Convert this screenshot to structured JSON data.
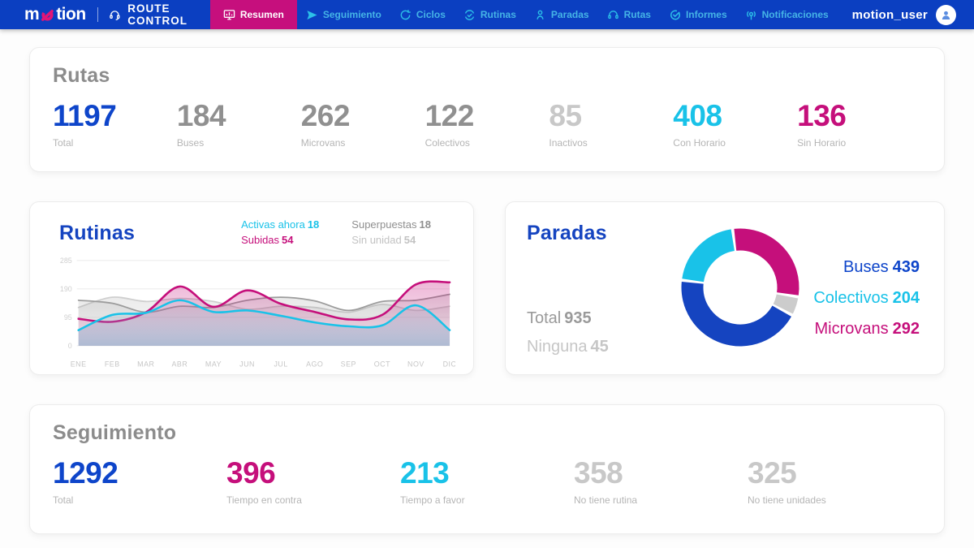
{
  "brand": {
    "logo_start": "m",
    "logo_end": "tion",
    "product": "ROUTE CONTROL",
    "user": "motion_user"
  },
  "colors": {
    "navbar_blue": "#0b3fc1",
    "active_pink": "#c60f7d",
    "nav_cyan": "#2cc0e8",
    "blue": "#0e45ca",
    "cyan": "#19c2e8",
    "magenta": "#c50f7b",
    "gray": "#909090",
    "light_gray": "#c8c8c8",
    "heading_blue": "#1544c0"
  },
  "nav": {
    "items": [
      {
        "label": "Resumen",
        "active": true
      },
      {
        "label": "Seguimiento",
        "active": false
      },
      {
        "label": "Ciclos",
        "active": false
      },
      {
        "label": "Rutinas",
        "active": false
      },
      {
        "label": "Paradas",
        "active": false
      },
      {
        "label": "Rutas",
        "active": false
      },
      {
        "label": "Informes",
        "active": false
      },
      {
        "label": "Notificaciones",
        "active": false
      }
    ]
  },
  "rutas": {
    "title": "Rutas",
    "stats": [
      {
        "value": "1197",
        "label": "Total",
        "color": "blue"
      },
      {
        "value": "184",
        "label": "Buses",
        "color": "gray"
      },
      {
        "value": "262",
        "label": "Microvans",
        "color": "gray"
      },
      {
        "value": "122",
        "label": "Colectivos",
        "color": "gray"
      },
      {
        "value": "85",
        "label": "Inactivos",
        "color": "lightgray"
      },
      {
        "value": "408",
        "label": "Con Horario",
        "color": "cyan"
      },
      {
        "value": "136",
        "label": "Sin Horario",
        "color": "magenta"
      }
    ]
  },
  "rutinas": {
    "title": "Rutinas",
    "legend": [
      {
        "label": "Activas ahora",
        "value": "18",
        "color": "cyan"
      },
      {
        "label": "Superpuestas",
        "value": "18",
        "color": "gray"
      },
      {
        "label": "Subidas",
        "value": "54",
        "color": "magenta"
      },
      {
        "label": "Sin unidad",
        "value": "54",
        "color": "lightgray"
      }
    ]
  },
  "paradas": {
    "title": "Paradas",
    "total_label": "Total",
    "total_value": "935",
    "none_label": "Ninguna",
    "none_value": "45",
    "legend": [
      {
        "label": "Buses",
        "value": "439",
        "color": "blue"
      },
      {
        "label": "Colectivos",
        "value": "204",
        "color": "cyan"
      },
      {
        "label": "Microvans",
        "value": "292",
        "color": "magenta"
      }
    ]
  },
  "seguimiento": {
    "title": "Seguimiento",
    "stats": [
      {
        "value": "1292",
        "label": "Total",
        "color": "blue"
      },
      {
        "value": "396",
        "label": "Tiempo en contra",
        "color": "magenta"
      },
      {
        "value": "213",
        "label": "Tiempo a favor",
        "color": "cyan"
      },
      {
        "value": "358",
        "label": "No tiene rutina",
        "color": "lightgray"
      },
      {
        "value": "325",
        "label": "No tiene unidades",
        "color": "lightgray"
      }
    ]
  },
  "chart_data": [
    {
      "type": "line",
      "title": "Rutinas",
      "x": [
        "ENE",
        "FEB",
        "MAR",
        "ABR",
        "MAY",
        "JUN",
        "JUL",
        "AGO",
        "SEP",
        "OCT",
        "NOV",
        "DIC"
      ],
      "ylim": [
        0,
        285
      ],
      "yticks": [
        0,
        95,
        190,
        285
      ],
      "grid": true,
      "legend_position": "top-right",
      "series": [
        {
          "name": "Activas ahora",
          "color": "#19c2e8",
          "values": [
            52,
            103,
            110,
            152,
            113,
            118,
            100,
            78,
            65,
            68,
            135,
            52
          ]
        },
        {
          "name": "Subidas",
          "color": "#c50f7b",
          "values": [
            90,
            80,
            112,
            198,
            130,
            185,
            140,
            113,
            88,
            103,
            205,
            212
          ]
        },
        {
          "name": "Superpuestas",
          "color": "#9c9c9c",
          "values": [
            152,
            142,
            112,
            132,
            128,
            152,
            162,
            150,
            118,
            148,
            152,
            172
          ]
        },
        {
          "name": "Sin unidad",
          "color": "#cfcfcf",
          "values": [
            128,
            162,
            148,
            158,
            148,
            122,
            132,
            128,
            112,
            138,
            118,
            132
          ]
        }
      ]
    },
    {
      "type": "pie",
      "title": "Paradas",
      "donut": true,
      "start_angle": -6,
      "slices": [
        {
          "label": "Microvans",
          "value": 292,
          "color": "#c50f7b"
        },
        {
          "label": "Ninguna",
          "value": 45,
          "color": "#cccccc"
        },
        {
          "label": "Buses",
          "value": 439,
          "color": "#1544c0"
        },
        {
          "label": "Colectivos",
          "value": 204,
          "color": "#19c2e8"
        }
      ],
      "total": 935
    }
  ]
}
